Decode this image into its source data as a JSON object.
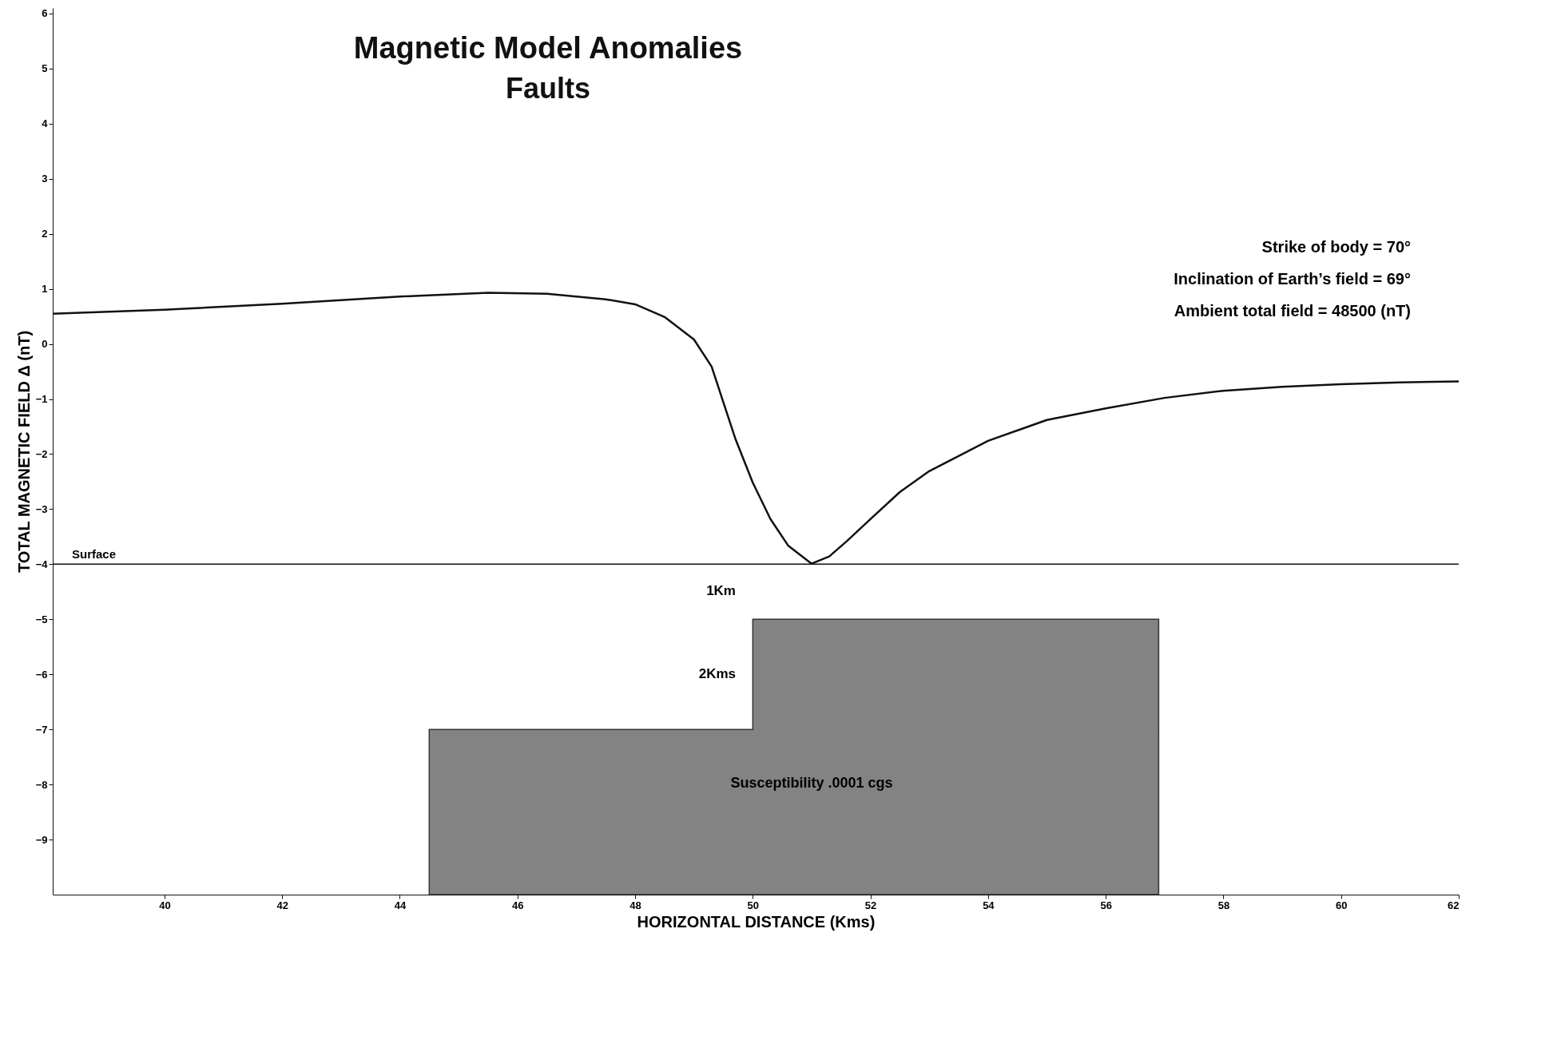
{
  "chart_data": {
    "type": "line",
    "title": "Magnetic Model Anomalies",
    "subtitle": "Faults",
    "xlabel": "HORIZONTAL DISTANCE (Kms)",
    "ylabel": "TOTAL MAGNETIC FIELD Δ (nT)",
    "xlim": [
      38.1,
      62
    ],
    "xticks": [
      40,
      42,
      44,
      46,
      48,
      50,
      52,
      54,
      56,
      58,
      60,
      62
    ],
    "ylim": [
      -10,
      6.1
    ],
    "yticks": [
      -9,
      -8,
      -7,
      -6,
      -5,
      -4,
      -3,
      -2,
      -1,
      0,
      1,
      2,
      3,
      4,
      5,
      6
    ],
    "grid": false,
    "series": [
      {
        "type": "line",
        "color": "#111111",
        "x": [
          38.1,
          40,
          42,
          44,
          45.5,
          46.5,
          47.5,
          48,
          48.5,
          49,
          49.3,
          49.5,
          49.7,
          50,
          50.3,
          50.6,
          51,
          51.3,
          51.6,
          52,
          52.5,
          53,
          54,
          55,
          56,
          57,
          58,
          59,
          60,
          61,
          62
        ],
        "values": [
          0.55,
          0.62,
          0.73,
          0.86,
          0.93,
          0.91,
          0.81,
          0.72,
          0.49,
          0.08,
          -0.41,
          -1.06,
          -1.71,
          -2.52,
          -3.18,
          -3.66,
          -3.99,
          -3.86,
          -3.58,
          -3.18,
          -2.69,
          -2.31,
          -1.76,
          -1.38,
          -1.17,
          -0.98,
          -0.85,
          -0.78,
          -0.73,
          -0.7,
          -0.68
        ]
      }
    ],
    "ref_lines": [
      {
        "axis": "y",
        "value": -4,
        "label": "Surface",
        "color": "#111111"
      }
    ],
    "annotations": [
      "Strike of body = 70°",
      "Inclination of Earth’s field = 69°",
      "Ambient total field = 48500 (nT)",
      "1Km",
      "2Kms",
      "Susceptibility .0001 cgs"
    ]
  }
}
